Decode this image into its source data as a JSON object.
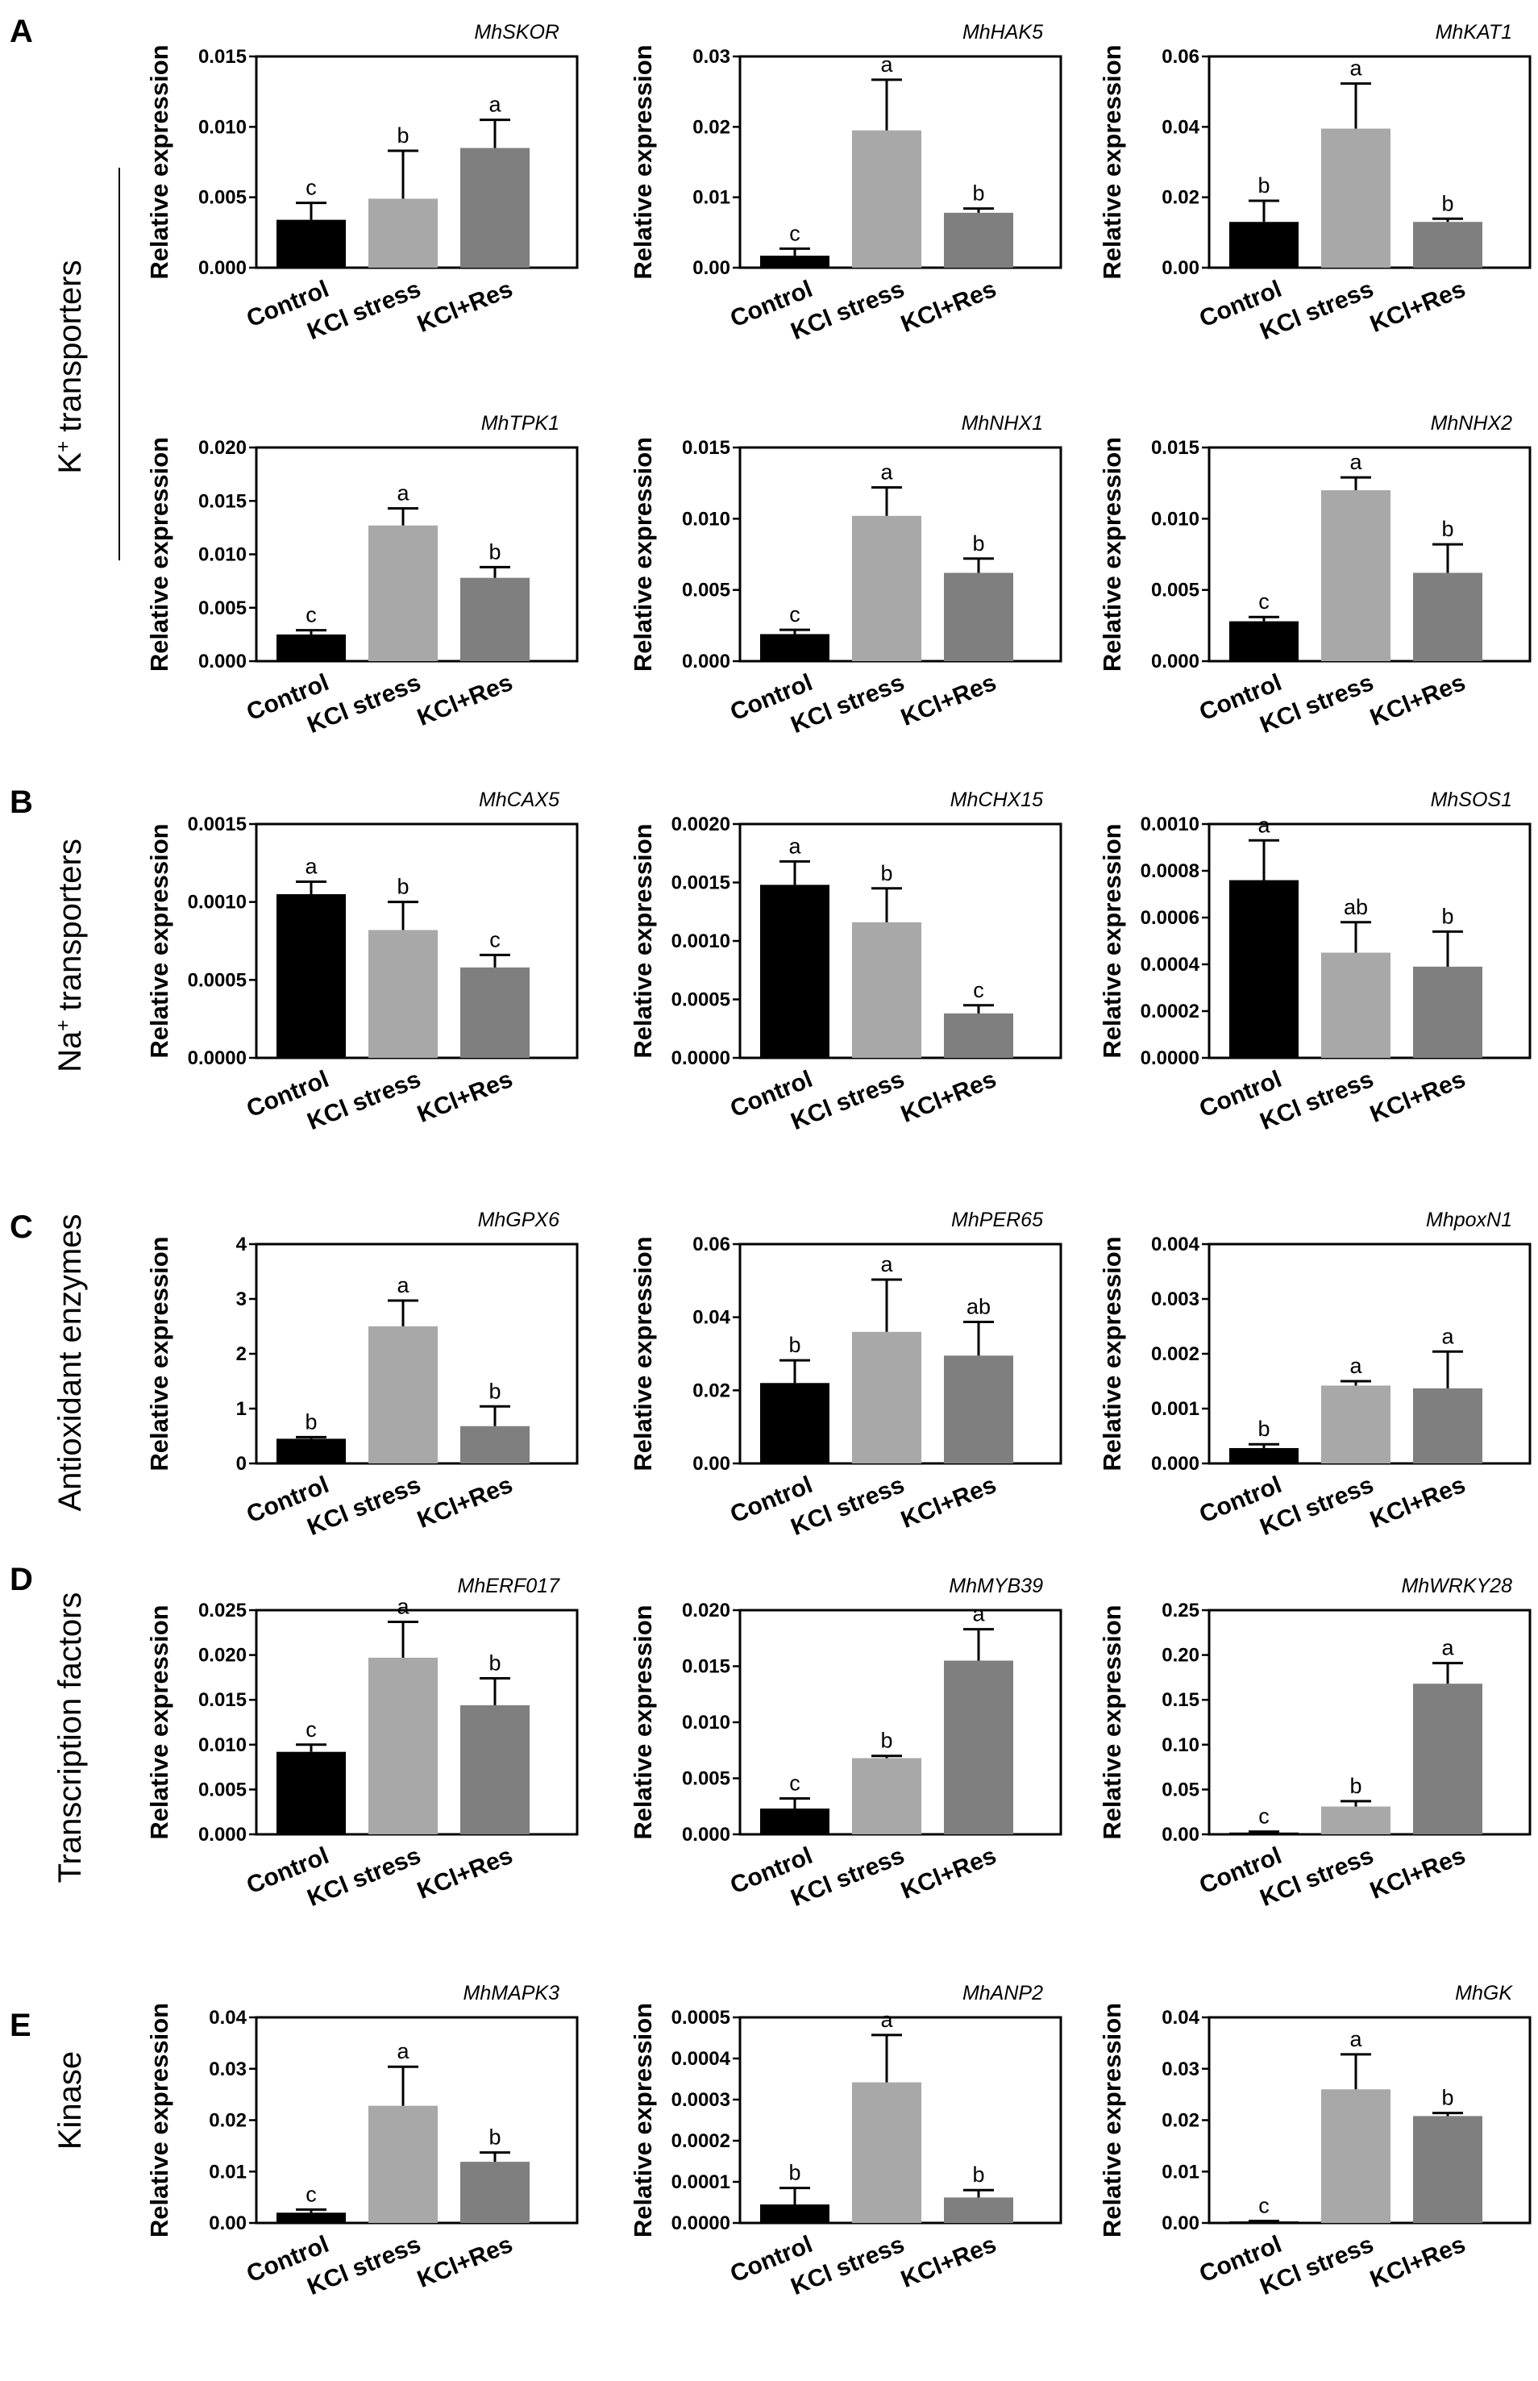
{
  "categories": [
    "Control",
    "KCl stress",
    "KCl+Res"
  ],
  "colors": [
    "#000000",
    "#a8a8a8",
    "#7f7f7f"
  ],
  "ylabel": "Relative expression",
  "panels": [
    {
      "letter": "A",
      "group_label": "K⁺ transporters",
      "group_label_base": "K",
      "group_label_sup": "+",
      "group_label_rest": " transporters"
    },
    {
      "letter": "B",
      "group_label": "Na⁺ transporters",
      "group_label_base": "Na",
      "group_label_sup": "+",
      "group_label_rest": " transporters"
    },
    {
      "letter": "C",
      "group_label": "Antioxidant enzymes"
    },
    {
      "letter": "D",
      "group_label": "Transcription factors"
    },
    {
      "letter": "E",
      "group_label": "Kinase"
    }
  ],
  "chart_data": [
    {
      "type": "bar",
      "title": "MhSKOR",
      "title_italic": true,
      "ylabel": "Relative expression",
      "categories": [
        "Control",
        "KCl stress",
        "KCl+Res"
      ],
      "values": [
        0.0034,
        0.0049,
        0.0085
      ],
      "errors": [
        0.0012,
        0.0034,
        0.002
      ],
      "letters": [
        "c",
        "b",
        "a"
      ],
      "ylim": [
        0,
        0.015
      ],
      "yticks": [
        0,
        0.005,
        0.01,
        0.015
      ],
      "ytick_labels": [
        "0.000",
        "0.005",
        "0.010",
        "0.015"
      ]
    },
    {
      "type": "bar",
      "title": "MhHAK5",
      "title_italic": true,
      "ylabel": "Relative expression",
      "categories": [
        "Control",
        "KCl stress",
        "KCl+Res"
      ],
      "values": [
        0.0017,
        0.0195,
        0.0078
      ],
      "errors": [
        0.001,
        0.0072,
        0.0006
      ],
      "letters": [
        "c",
        "a",
        "b"
      ],
      "ylim": [
        0,
        0.03
      ],
      "yticks": [
        0,
        0.01,
        0.02,
        0.03
      ],
      "ytick_labels": [
        "0.00",
        "0.01",
        "0.02",
        "0.03"
      ]
    },
    {
      "type": "bar",
      "title": "MhKAT1",
      "title_italic": true,
      "ylabel": "Relative expression",
      "categories": [
        "Control",
        "KCl stress",
        "KCl+Res"
      ],
      "values": [
        0.013,
        0.0395,
        0.013
      ],
      "errors": [
        0.006,
        0.0128,
        0.0009
      ],
      "letters": [
        "b",
        "a",
        "b"
      ],
      "ylim": [
        0,
        0.06
      ],
      "yticks": [
        0,
        0.02,
        0.04,
        0.06
      ],
      "ytick_labels": [
        "0.00",
        "0.02",
        "0.04",
        "0.06"
      ]
    },
    {
      "type": "bar",
      "title": "MhTPK1",
      "title_italic": true,
      "ylabel": "Relative expression",
      "categories": [
        "Control",
        "KCl stress",
        "KCl+Res"
      ],
      "values": [
        0.0025,
        0.0127,
        0.0078
      ],
      "errors": [
        0.0004,
        0.0016,
        0.001
      ],
      "letters": [
        "c",
        "a",
        "b"
      ],
      "ylim": [
        0,
        0.02
      ],
      "yticks": [
        0,
        0.005,
        0.01,
        0.015,
        0.02
      ],
      "ytick_labels": [
        "0.000",
        "0.005",
        "0.010",
        "0.015",
        "0.020"
      ]
    },
    {
      "type": "bar",
      "title": "MhNHX1",
      "title_italic": true,
      "ylabel": "Relative expression",
      "categories": [
        "Control",
        "KCl stress",
        "KCl+Res"
      ],
      "values": [
        0.0019,
        0.0102,
        0.0062
      ],
      "errors": [
        0.0003,
        0.002,
        0.001
      ],
      "letters": [
        "c",
        "a",
        "b"
      ],
      "ylim": [
        0,
        0.015
      ],
      "yticks": [
        0,
        0.005,
        0.01,
        0.015
      ],
      "ytick_labels": [
        "0.000",
        "0.005",
        "0.010",
        "0.015"
      ]
    },
    {
      "type": "bar",
      "title": "MhNHX2",
      "title_italic": true,
      "ylabel": "Relative expression",
      "categories": [
        "Control",
        "KCl stress",
        "KCl+Res"
      ],
      "values": [
        0.0028,
        0.012,
        0.0062
      ],
      "errors": [
        0.0003,
        0.0009,
        0.002
      ],
      "letters": [
        "c",
        "a",
        "b"
      ],
      "ylim": [
        0,
        0.015
      ],
      "yticks": [
        0,
        0.005,
        0.01,
        0.015
      ],
      "ytick_labels": [
        "0.000",
        "0.005",
        "0.010",
        "0.015"
      ]
    },
    {
      "type": "bar",
      "title": "MhCAX5",
      "title_italic": true,
      "ylabel": "Relative expression",
      "categories": [
        "Control",
        "KCl stress",
        "KCl+Res"
      ],
      "values": [
        0.00105,
        0.00082,
        0.00058
      ],
      "errors": [
        8e-05,
        0.00018,
        8e-05
      ],
      "letters": [
        "a",
        "b",
        "c"
      ],
      "ylim": [
        0,
        0.0015
      ],
      "yticks": [
        0,
        0.0005,
        0.001,
        0.0015
      ],
      "ytick_labels": [
        "0.0000",
        "0.0005",
        "0.0010",
        "0.0015"
      ]
    },
    {
      "type": "bar",
      "title": "MhCHX15",
      "title_italic": true,
      "ylabel": "Relative expression",
      "categories": [
        "Control",
        "KCl stress",
        "KCl+Res"
      ],
      "values": [
        0.00148,
        0.00116,
        0.00038
      ],
      "errors": [
        0.0002,
        0.00029,
        7e-05
      ],
      "letters": [
        "a",
        "b",
        "c"
      ],
      "ylim": [
        0,
        0.002
      ],
      "yticks": [
        0,
        0.0005,
        0.001,
        0.0015,
        0.002
      ],
      "ytick_labels": [
        "0.0000",
        "0.0005",
        "0.0010",
        "0.0015",
        "0.0020"
      ]
    },
    {
      "type": "bar",
      "title": "MhSOS1",
      "title_italic": true,
      "ylabel": "Relative expression",
      "categories": [
        "Control",
        "KCl stress",
        "KCl+Res"
      ],
      "values": [
        0.00076,
        0.00045,
        0.00039
      ],
      "errors": [
        0.00017,
        0.00013,
        0.00015
      ],
      "letters": [
        "a",
        "ab",
        "b"
      ],
      "ylim": [
        0,
        0.001
      ],
      "yticks": [
        0,
        0.0002,
        0.0004,
        0.0006,
        0.0008,
        0.001
      ],
      "ytick_labels": [
        "0.0000",
        "0.0002",
        "0.0004",
        "0.0006",
        "0.0008",
        "0.0010"
      ]
    },
    {
      "type": "bar",
      "title": "MhGPX6",
      "title_italic": true,
      "ylabel": "Relative expression",
      "categories": [
        "Control",
        "KCl stress",
        "KCl+Res"
      ],
      "values": [
        0.45,
        2.5,
        0.68
      ],
      "errors": [
        0.03,
        0.47,
        0.36
      ],
      "letters": [
        "b",
        "a",
        "b"
      ],
      "ylim": [
        0,
        4
      ],
      "yticks": [
        0,
        1,
        2,
        3,
        4
      ],
      "ytick_labels": [
        "0",
        "1",
        "2",
        "3",
        "4"
      ]
    },
    {
      "type": "bar",
      "title": "MhPER65",
      "title_italic": true,
      "ylabel": "Relative expression",
      "categories": [
        "Control",
        "KCl stress",
        "KCl+Res"
      ],
      "values": [
        0.022,
        0.036,
        0.0295
      ],
      "errors": [
        0.0062,
        0.0143,
        0.0092
      ],
      "letters": [
        "b",
        "a",
        "ab"
      ],
      "ylim": [
        0,
        0.06
      ],
      "yticks": [
        0,
        0.02,
        0.04,
        0.06
      ],
      "ytick_labels": [
        "0.00",
        "0.02",
        "0.04",
        "0.06"
      ]
    },
    {
      "type": "bar",
      "title": "MhpoxN1",
      "title_italic": true,
      "ylabel": "Relative expression",
      "categories": [
        "Control",
        "KCl stress",
        "KCl+Res"
      ],
      "values": [
        0.00028,
        0.00142,
        0.00137
      ],
      "errors": [
        7e-05,
        8e-05,
        0.00067
      ],
      "letters": [
        "b",
        "a",
        "a"
      ],
      "ylim": [
        0,
        0.004
      ],
      "yticks": [
        0,
        0.001,
        0.002,
        0.003,
        0.004
      ],
      "ytick_labels": [
        "0.000",
        "0.001",
        "0.002",
        "0.003",
        "0.004"
      ]
    },
    {
      "type": "bar",
      "title": "MhERF017",
      "title_italic": true,
      "ylabel": "Relative expression",
      "categories": [
        "Control",
        "KCl stress",
        "KCl+Res"
      ],
      "values": [
        0.0092,
        0.0197,
        0.0144
      ],
      "errors": [
        0.0008,
        0.004,
        0.003
      ],
      "letters": [
        "c",
        "a",
        "b"
      ],
      "ylim": [
        0,
        0.025
      ],
      "yticks": [
        0,
        0.005,
        0.01,
        0.015,
        0.02,
        0.025
      ],
      "ytick_labels": [
        "0.000",
        "0.005",
        "0.010",
        "0.015",
        "0.020",
        "0.025"
      ]
    },
    {
      "type": "bar",
      "title": "MhMYB39",
      "title_italic": true,
      "ylabel": "Relative expression",
      "categories": [
        "Control",
        "KCl stress",
        "KCl+Res"
      ],
      "values": [
        0.0023,
        0.0068,
        0.0155
      ],
      "errors": [
        0.0009,
        0.0002,
        0.0028
      ],
      "letters": [
        "c",
        "b",
        "a"
      ],
      "ylim": [
        0,
        0.02
      ],
      "yticks": [
        0,
        0.005,
        0.01,
        0.015,
        0.02
      ],
      "ytick_labels": [
        "0.000",
        "0.005",
        "0.010",
        "0.015",
        "0.020"
      ]
    },
    {
      "type": "bar",
      "title": "MhWRKY28",
      "title_italic": true,
      "ylabel": "Relative expression",
      "categories": [
        "Control",
        "KCl stress",
        "KCl+Res"
      ],
      "values": [
        0.002,
        0.031,
        0.168
      ],
      "errors": [
        0.001,
        0.006,
        0.023
      ],
      "letters": [
        "c",
        "b",
        "a"
      ],
      "ylim": [
        0,
        0.25
      ],
      "yticks": [
        0,
        0.05,
        0.1,
        0.15,
        0.2,
        0.25
      ],
      "ytick_labels": [
        "0.00",
        "0.05",
        "0.10",
        "0.15",
        "0.20",
        "0.25"
      ]
    },
    {
      "type": "bar",
      "title": "MhMAPK3",
      "title_italic": true,
      "ylabel": "Relative expression",
      "categories": [
        "Control",
        "KCl stress",
        "KCl+Res"
      ],
      "values": [
        0.002,
        0.0228,
        0.0119
      ],
      "errors": [
        0.0006,
        0.0076,
        0.0018
      ],
      "letters": [
        "c",
        "a",
        "b"
      ],
      "ylim": [
        0,
        0.04
      ],
      "yticks": [
        0,
        0.01,
        0.02,
        0.03,
        0.04
      ],
      "ytick_labels": [
        "0.00",
        "0.01",
        "0.02",
        "0.03",
        "0.04"
      ]
    },
    {
      "type": "bar",
      "title": "MhANP2",
      "title_italic": true,
      "ylabel": "Relative expression",
      "categories": [
        "Control",
        "KCl stress",
        "KCl+Res"
      ],
      "values": [
        4.5e-05,
        0.000342,
        6.2e-05
      ],
      "errors": [
        4e-05,
        0.000115,
        1.8e-05
      ],
      "letters": [
        "b",
        "a",
        "b"
      ],
      "ylim": [
        0,
        0.0005
      ],
      "yticks": [
        0,
        0.0001,
        0.0002,
        0.0003,
        0.0004,
        0.0005
      ],
      "ytick_labels": [
        "0.0000",
        "0.0001",
        "0.0002",
        "0.0003",
        "0.0004",
        "0.0005"
      ]
    },
    {
      "type": "bar",
      "title": "MhGK",
      "title_italic": true,
      "ylabel": "Relative expression",
      "categories": [
        "Control",
        "KCl stress",
        "KCl+Res"
      ],
      "values": [
        0.0003,
        0.026,
        0.0208
      ],
      "errors": [
        0.0001,
        0.0068,
        0.0006
      ],
      "letters": [
        "c",
        "a",
        "b"
      ],
      "ylim": [
        0,
        0.04
      ],
      "yticks": [
        0,
        0.01,
        0.02,
        0.03,
        0.04
      ],
      "ytick_labels": [
        "0.00",
        "0.01",
        "0.02",
        "0.03",
        "0.04"
      ]
    }
  ]
}
